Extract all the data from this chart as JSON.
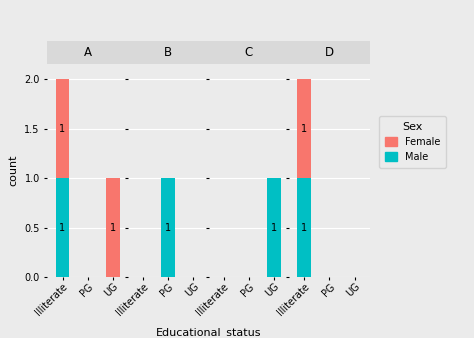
{
  "facets": [
    "A",
    "B",
    "C",
    "D"
  ],
  "categories": [
    "Illiterate",
    "PG",
    "UG"
  ],
  "sex_order": [
    "Male",
    "Female"
  ],
  "colors": {
    "Female": "#F8766D",
    "Male": "#00BFC4"
  },
  "data": {
    "A": {
      "Illiterate": {
        "Female": 1,
        "Male": 1
      },
      "PG": {},
      "UG": {
        "Female": 1,
        "Male": 0
      }
    },
    "B": {
      "Illiterate": {},
      "PG": {
        "Female": 0,
        "Male": 1
      },
      "UG": {}
    },
    "C": {
      "Illiterate": {},
      "PG": {},
      "UG": {
        "Female": 0,
        "Male": 1
      }
    },
    "D": {
      "Illiterate": {
        "Female": 1,
        "Male": 1
      },
      "PG": {},
      "UG": {}
    }
  },
  "ylabel": "count",
  "xlabel": "Educational_status",
  "ylim": [
    0,
    2.15
  ],
  "yticks": [
    0.0,
    0.5,
    1.0,
    1.5,
    2.0
  ],
  "yticklabels": [
    "0.0",
    "0.5",
    "1.0",
    "1.5",
    "2.0"
  ],
  "background_color": "#EBEBEB",
  "panel_strip_color": "#D9D9D9",
  "grid_color": "#FFFFFF",
  "bar_width": 0.55,
  "legend_title": "Sex",
  "facet_fontsize": 8.5,
  "axis_label_fontsize": 8,
  "tick_fontsize": 7,
  "bar_label_fontsize": 7
}
